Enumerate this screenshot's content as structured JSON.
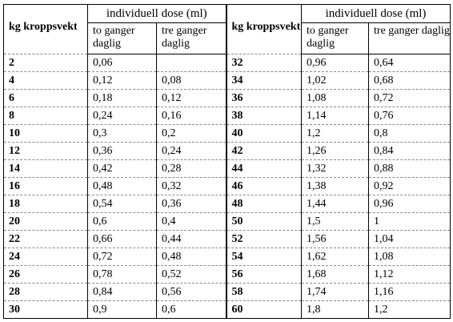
{
  "table": {
    "group_header": "individuell dose (ml)",
    "kg_header": "kg kroppsvekt",
    "col_twice": "to ganger daglig",
    "col_thrice": "tre ganger daglig",
    "left_rows": [
      {
        "kg": "2",
        "twice": "0,06",
        "thrice": ""
      },
      {
        "kg": "4",
        "twice": "0,12",
        "thrice": "0,08"
      },
      {
        "kg": "6",
        "twice": "0,18",
        "thrice": "0,12"
      },
      {
        "kg": "8",
        "twice": "0,24",
        "thrice": "0,16"
      },
      {
        "kg": "10",
        "twice": "0,3",
        "thrice": "0,2"
      },
      {
        "kg": "12",
        "twice": "0,36",
        "thrice": "0,24"
      },
      {
        "kg": "14",
        "twice": "0,42",
        "thrice": "0,28"
      },
      {
        "kg": "16",
        "twice": "0,48",
        "thrice": "0,32"
      },
      {
        "kg": "18",
        "twice": "0,54",
        "thrice": "0,36"
      },
      {
        "kg": "20",
        "twice": "0,6",
        "thrice": "0,4"
      },
      {
        "kg": "22",
        "twice": "0,66",
        "thrice": "0,44"
      },
      {
        "kg": "24",
        "twice": "0,72",
        "thrice": "0,48"
      },
      {
        "kg": "26",
        "twice": "0,78",
        "thrice": "0,52"
      },
      {
        "kg": "28",
        "twice": "0,84",
        "thrice": "0,56"
      },
      {
        "kg": "30",
        "twice": "0,9",
        "thrice": "0,6"
      }
    ],
    "right_rows": [
      {
        "kg": "32",
        "twice": "0,96",
        "thrice": "0,64"
      },
      {
        "kg": "34",
        "twice": "1,02",
        "thrice": "0,68"
      },
      {
        "kg": "36",
        "twice": "1,08",
        "thrice": "0,72"
      },
      {
        "kg": "38",
        "twice": "1,14",
        "thrice": "0,76"
      },
      {
        "kg": "40",
        "twice": "1,2",
        "thrice": "0,8"
      },
      {
        "kg": "42",
        "twice": "1,26",
        "thrice": "0,84"
      },
      {
        "kg": "44",
        "twice": "1,32",
        "thrice": "0,88"
      },
      {
        "kg": "46",
        "twice": "1,38",
        "thrice": "0,92"
      },
      {
        "kg": "48",
        "twice": "1,44",
        "thrice": "0,96"
      },
      {
        "kg": "50",
        "twice": "1,5",
        "thrice": "1"
      },
      {
        "kg": "52",
        "twice": "1,56",
        "thrice": "1,04"
      },
      {
        "kg": "54",
        "twice": "1,62",
        "thrice": "1,08"
      },
      {
        "kg": "56",
        "twice": "1,68",
        "thrice": "1,12"
      },
      {
        "kg": "58",
        "twice": "1,74",
        "thrice": "1,16"
      },
      {
        "kg": "60",
        "twice": "1,8",
        "thrice": "1,2"
      }
    ]
  }
}
